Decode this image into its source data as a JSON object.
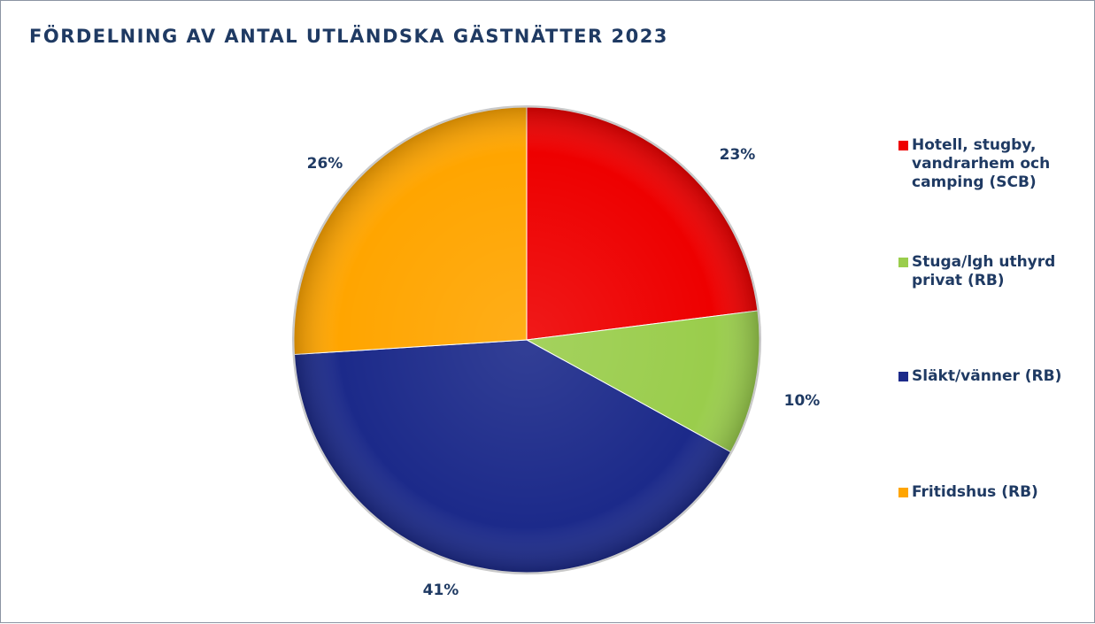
{
  "title": "FÖRDELNING AV ANTAL UTLÄNDSKA GÄSTNÄTTER 2023",
  "colors": {
    "title_text": "#1f3a63",
    "label_text": "#1f3a63",
    "border": "#8c94a3"
  },
  "chart_data": {
    "type": "pie",
    "title": "FÖRDELNING AV ANTAL UTLÄNDSKA GÄSTNÄTTER 2023",
    "start_angle": "12 o'clock",
    "direction": "clockwise",
    "legend_position": "right",
    "categories": [
      "Hotell, stugby, vandrarhem och camping (SCB)",
      "Stuga/lgh uthyrd privat (RB)",
      "Släkt/vänner (RB)",
      "Fritidshus (RB)"
    ],
    "values": [
      23,
      10,
      41,
      26
    ],
    "labels": [
      "23%",
      "10%",
      "41%",
      "26%"
    ],
    "colors": [
      "#ee0000",
      "#9acd4c",
      "#1c2a8a",
      "#ffa500"
    ]
  }
}
